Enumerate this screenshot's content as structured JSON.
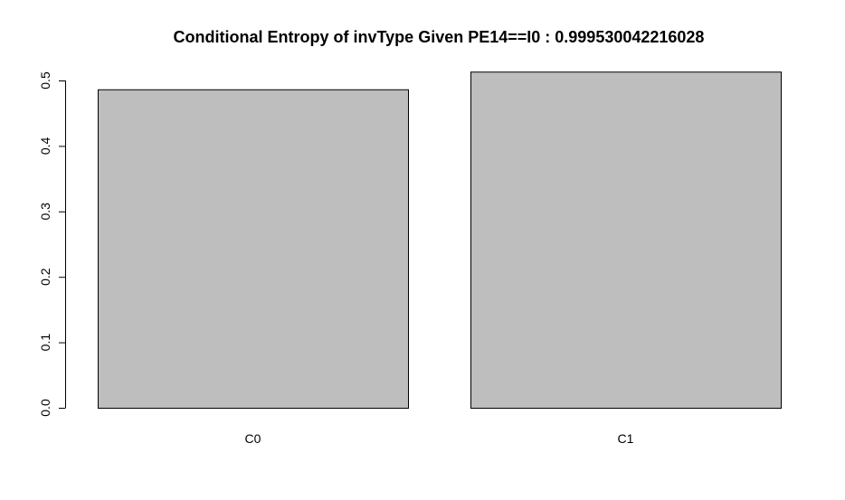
{
  "chart_data": {
    "type": "bar",
    "title": "Conditional Entropy of invType Given PE14==I0 :  0.999530042216028",
    "xlabel": "",
    "ylabel": "",
    "categories": [
      "C0",
      "C1"
    ],
    "values": [
      0.4865,
      0.5135
    ],
    "ylim": [
      0,
      0.5
    ],
    "yticks": [
      0.0,
      0.1,
      0.2,
      0.3,
      0.4,
      0.5
    ],
    "ytick_labels": [
      "0.0",
      "0.1",
      "0.2",
      "0.3",
      "0.4",
      "0.5"
    ],
    "grid": false,
    "legend": "none",
    "colors": {
      "bar_fill": "#bebebe",
      "bar_stroke": "#000000",
      "axis": "#000000"
    }
  }
}
